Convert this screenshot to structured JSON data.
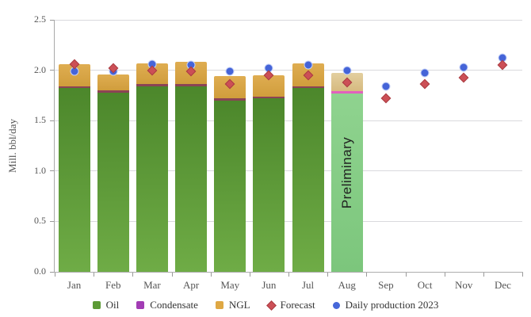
{
  "chart_data": {
    "type": "bar",
    "stacked": true,
    "ylabel": "Mill. bbl/day",
    "ylim": [
      0,
      2.5
    ],
    "yticks": [
      "0.0",
      "0.5",
      "1.0",
      "1.5",
      "2.0",
      "2.5"
    ],
    "grid": true,
    "legend_position": "bottom",
    "categories": [
      "Jan",
      "Feb",
      "Mar",
      "Apr",
      "May",
      "Jun",
      "Jul",
      "Aug",
      "Sep",
      "Oct",
      "Nov",
      "Dec"
    ],
    "series": [
      {
        "name": "Oil",
        "type": "column",
        "legend_marker": "square",
        "color": "#5c9a36",
        "values": [
          1.82,
          1.78,
          1.84,
          1.84,
          1.7,
          1.72,
          1.82,
          1.77,
          null,
          null,
          null,
          null
        ]
      },
      {
        "name": "Condensate",
        "type": "column",
        "legend_marker": "square",
        "color": "#a23cb4",
        "values": [
          0.02,
          0.02,
          0.02,
          0.02,
          0.02,
          0.02,
          0.02,
          0.02,
          null,
          null,
          null,
          null
        ]
      },
      {
        "name": "NGL",
        "type": "column",
        "legend_marker": "square",
        "color": "#dfa844",
        "values": [
          0.22,
          0.16,
          0.21,
          0.22,
          0.22,
          0.21,
          0.23,
          0.18,
          null,
          null,
          null,
          null
        ]
      },
      {
        "name": "Forecast",
        "type": "scatter",
        "legend_marker": "diamond",
        "color": "#cc4f56",
        "values": [
          2.06,
          2.02,
          2.0,
          1.99,
          1.86,
          1.95,
          1.95,
          1.88,
          1.72,
          1.86,
          1.93,
          2.05
        ]
      },
      {
        "name": "Daily production 2023",
        "type": "scatter",
        "legend_marker": "circle",
        "color": "#4667d9",
        "values": [
          1.99,
          1.99,
          2.06,
          2.05,
          1.99,
          2.02,
          2.05,
          2.0,
          1.84,
          1.97,
          2.03,
          2.12
        ]
      }
    ],
    "preliminary": {
      "category": "Aug",
      "label": "Preliminary"
    },
    "palette": {
      "oil_top": "#4c872b",
      "oil_bottom": "#6fac46",
      "ngl_top": "#dfad51",
      "ngl_bottom": "#d09d3c",
      "condensate_band": "#8b4355",
      "prelim_oil_top": "#8fd38f",
      "prelim_oil_bottom": "#7cc67c",
      "prelim_ngl_top": "#e3cf9f",
      "prelim_ngl_bottom": "#d6ba80",
      "prelim_condensate": "#e160be",
      "forecast_fill": "#cc4f56",
      "forecast_stroke": "#a93c42",
      "daily_fill": "#4564d8",
      "daily_ring": "#c6d2f7"
    }
  }
}
